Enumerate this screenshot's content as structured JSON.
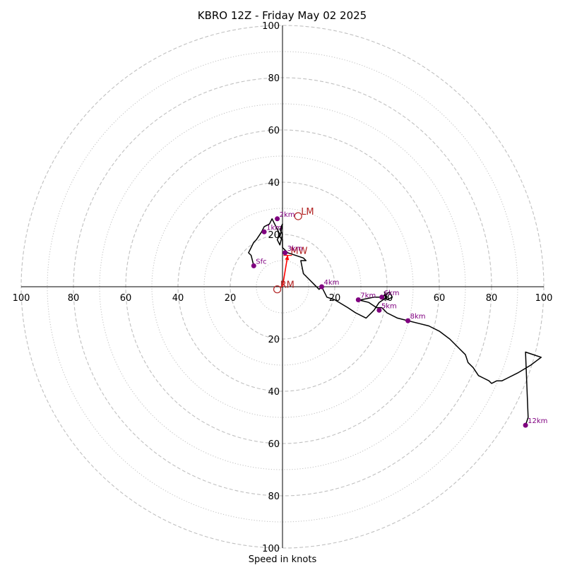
{
  "chart_data": {
    "type": "hodograph",
    "title": "KBRO 12Z - Friday May 02 2025",
    "xlabel": "Speed in knots",
    "rmax": 100,
    "ring_major": [
      20,
      40,
      60,
      80,
      100
    ],
    "ring_minor": [
      10,
      30,
      50,
      70,
      90
    ],
    "x_tick_labels": [
      "100",
      "80",
      "60",
      "40",
      "20",
      "20",
      "40",
      "60",
      "80",
      "100"
    ],
    "y_tick_labels": [
      "100",
      "80",
      "60",
      "40",
      "20",
      "20",
      "40",
      "60",
      "80",
      "100"
    ],
    "x_tick_values": [
      -100,
      -80,
      -60,
      -40,
      -20,
      20,
      40,
      60,
      80,
      100
    ],
    "y_tick_values": [
      100,
      80,
      60,
      40,
      20,
      -20,
      -40,
      -60,
      -80,
      -100
    ],
    "trace": [
      [
        -11,
        8
      ],
      [
        -12,
        12
      ],
      [
        -13,
        13
      ],
      [
        -12,
        15
      ],
      [
        -11,
        17
      ],
      [
        -10,
        18
      ],
      [
        -8,
        21
      ],
      [
        -7,
        23
      ],
      [
        -5,
        24
      ],
      [
        -4,
        26
      ],
      [
        -3,
        24
      ],
      [
        -2,
        22
      ],
      [
        -1,
        20
      ],
      [
        -2,
        18
      ],
      [
        -1,
        16
      ],
      [
        0,
        20
      ],
      [
        -1,
        22
      ],
      [
        0,
        24
      ],
      [
        -1,
        19
      ],
      [
        0,
        18
      ],
      [
        0,
        15
      ],
      [
        1,
        14
      ],
      [
        2,
        13
      ],
      [
        5,
        12
      ],
      [
        8,
        11
      ],
      [
        9,
        10
      ],
      [
        7,
        10
      ],
      [
        8,
        5
      ],
      [
        10,
        3
      ],
      [
        12,
        1
      ],
      [
        14,
        -1
      ],
      [
        15,
        0
      ],
      [
        16,
        -2
      ],
      [
        17,
        -4
      ],
      [
        20,
        -5
      ],
      [
        25,
        -8
      ],
      [
        28,
        -10
      ],
      [
        32,
        -12
      ],
      [
        35,
        -9
      ],
      [
        37,
        -6
      ],
      [
        40,
        -4
      ],
      [
        39,
        -2
      ],
      [
        40,
        -5
      ],
      [
        42,
        -4
      ],
      [
        41,
        -2
      ],
      [
        38,
        -4
      ],
      [
        35,
        -4
      ],
      [
        30,
        -5
      ],
      [
        29,
        -5
      ],
      [
        33,
        -6
      ],
      [
        36,
        -8
      ],
      [
        38,
        -8
      ],
      [
        40,
        -10
      ],
      [
        44,
        -12
      ],
      [
        48,
        -13
      ],
      [
        52,
        -14
      ],
      [
        56,
        -15
      ],
      [
        60,
        -17
      ],
      [
        64,
        -20
      ],
      [
        67,
        -23
      ],
      [
        70,
        -26
      ],
      [
        71,
        -29
      ],
      [
        73,
        -31
      ],
      [
        75,
        -34
      ],
      [
        77,
        -35
      ],
      [
        79,
        -36
      ],
      [
        80,
        -37
      ],
      [
        82,
        -36
      ],
      [
        84,
        -36
      ],
      [
        86,
        -35
      ],
      [
        90,
        -33
      ],
      [
        95,
        -30
      ],
      [
        99,
        -27
      ],
      [
        93,
        -25
      ],
      [
        94,
        -50
      ],
      [
        93,
        -53
      ]
    ],
    "height_points": [
      {
        "label": "Sfc",
        "x": -11,
        "y": 8
      },
      {
        "label": "1km",
        "x": -7,
        "y": 21
      },
      {
        "label": "2km",
        "x": -2,
        "y": 26
      },
      {
        "label": "3km",
        "x": 1,
        "y": 13
      },
      {
        "label": "4km",
        "x": 15,
        "y": 0
      },
      {
        "label": "5km",
        "x": 37,
        "y": -9
      },
      {
        "label": "6km",
        "x": 38,
        "y": -4
      },
      {
        "label": "7km",
        "x": 29,
        "y": -5
      },
      {
        "label": "8km",
        "x": 48,
        "y": -13
      },
      {
        "label": "12km",
        "x": 93,
        "y": -53
      }
    ],
    "motion_points": [
      {
        "label": "LM",
        "x": 6,
        "y": 27
      },
      {
        "label": "MW",
        "x": 2,
        "y": 12
      },
      {
        "label": "RM",
        "x": -2,
        "y": -1
      }
    ],
    "arrow": {
      "from": {
        "x": 0,
        "y": 0
      },
      "to": {
        "x": 2,
        "y": 12
      }
    },
    "colors": {
      "grid": "#c0c0c0",
      "trace": "#000000",
      "height_dot": "#800080",
      "motion": "#b22222"
    }
  }
}
